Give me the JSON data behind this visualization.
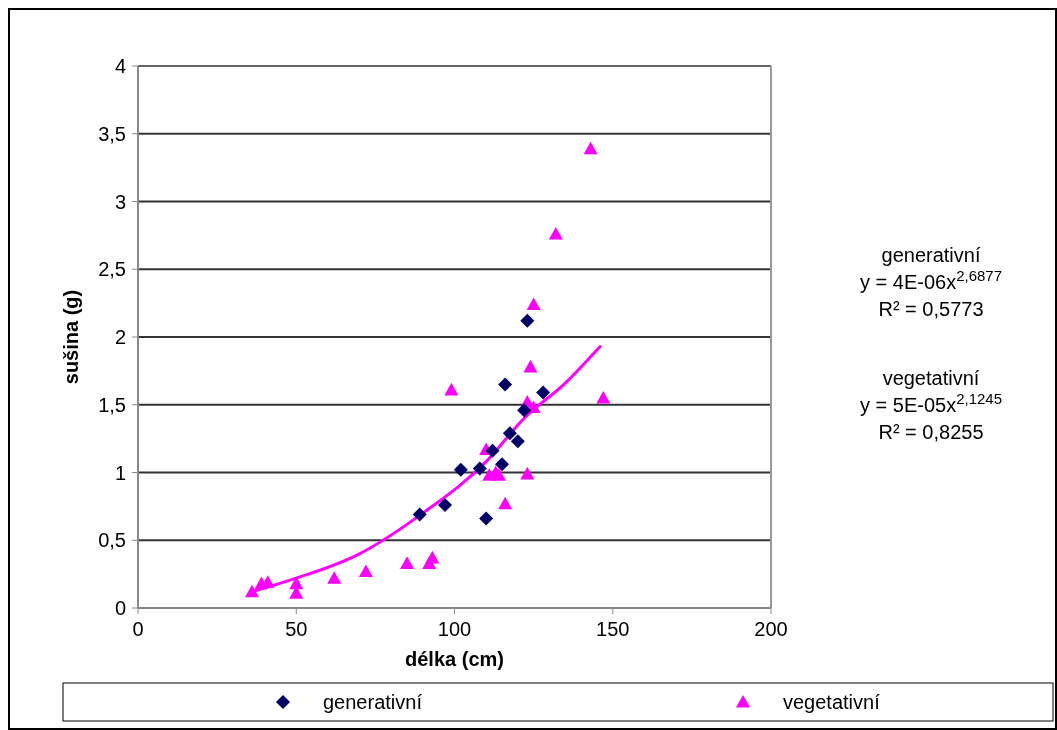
{
  "chart_data": {
    "type": "scatter",
    "xlabel": "délka (cm)",
    "ylabel": "sušina (g)",
    "xlim": [
      0,
      200
    ],
    "xticks": [
      0,
      50,
      100,
      150,
      200
    ],
    "ylim": [
      0,
      4
    ],
    "yticks": [
      0,
      {
        "value": 0.5,
        "label": "0,5"
      },
      1,
      {
        "value": 1.5,
        "label": "1,5"
      },
      2,
      {
        "value": 2.5,
        "label": "2,5"
      },
      3,
      {
        "value": 3.5,
        "label": "3,5"
      },
      4
    ],
    "grid": "y",
    "legend": "bottom",
    "series": [
      {
        "name": "generativní",
        "color": "#000066",
        "marker": "diamond",
        "x": [
          89,
          97,
          102,
          108,
          110,
          112,
          115,
          116,
          117.5,
          120,
          122,
          123,
          128
        ],
        "values": [
          0.69,
          0.76,
          1.02,
          1.03,
          0.66,
          1.16,
          1.06,
          1.65,
          1.29,
          1.23,
          1.46,
          2.12,
          1.59
        ]
      },
      {
        "name": "vegetativní",
        "color": "#ff00ff",
        "marker": "triangle",
        "x": [
          36,
          39,
          41,
          50,
          50,
          62,
          72,
          85,
          92,
          93,
          99,
          110,
          111,
          113,
          114,
          116,
          123,
          123,
          124,
          125,
          125,
          132,
          143,
          147
        ],
        "values": [
          0.12,
          0.18,
          0.19,
          0.18,
          0.11,
          0.22,
          0.27,
          0.33,
          0.33,
          0.37,
          1.61,
          1.17,
          0.98,
          1.0,
          0.98,
          0.77,
          0.99,
          1.52,
          1.78,
          1.48,
          2.24,
          2.76,
          3.39,
          1.55
        ]
      },
      {
        "type": "line",
        "color": "#ff00ff",
        "marker": "none",
        "x": [
          36,
          50,
          70,
          90,
          110,
          122,
          135,
          146
        ],
        "values": [
          0.12,
          0.22,
          0.4,
          0.7,
          1.08,
          1.4,
          1.66,
          1.93
        ]
      }
    ],
    "annotations": [
      "generativní",
      "y = 4E-06x$^{2,6877}$",
      "R² = 0,5773",
      "vegetativní",
      "y = 5E-05x$^{2,1245}$",
      "R² = 0,8255"
    ]
  }
}
